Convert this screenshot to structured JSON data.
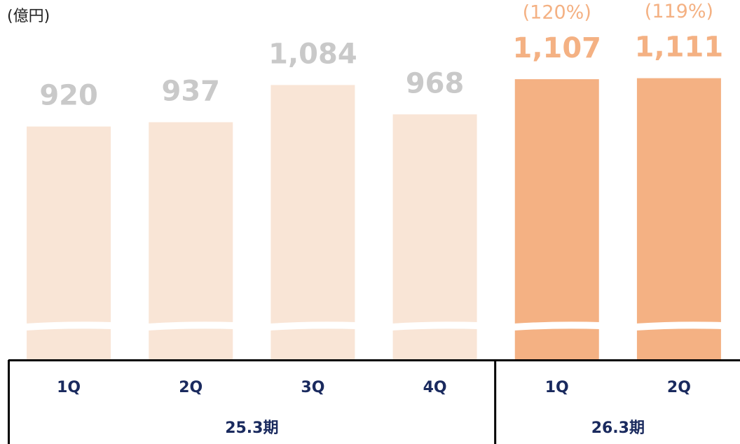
{
  "chart_data": {
    "type": "bar",
    "unit_label": "(億円)",
    "categories": [
      "1Q",
      "2Q",
      "3Q",
      "4Q",
      "1Q",
      "2Q"
    ],
    "values": [
      920,
      937,
      1084,
      968,
      1107,
      1111
    ],
    "value_labels": [
      "920",
      "937",
      "1,084",
      "968",
      "1,107",
      "1,111"
    ],
    "colors": [
      "#f9e5d6",
      "#f9e5d6",
      "#f9e5d6",
      "#f9e5d6",
      "#f4b183",
      "#f4b183"
    ],
    "label_colors": [
      "#c9c9c9",
      "#c9c9c9",
      "#c9c9c9",
      "#c9c9c9",
      "#f4b183",
      "#f4b183"
    ],
    "annotations": [
      "(120%)",
      "(119%)"
    ],
    "groups": [
      {
        "label": "25.3期",
        "count": 4
      },
      {
        "label": "26.3期",
        "count": 2
      }
    ],
    "ylim": [
      0,
      1420
    ],
    "axis_break": true
  }
}
